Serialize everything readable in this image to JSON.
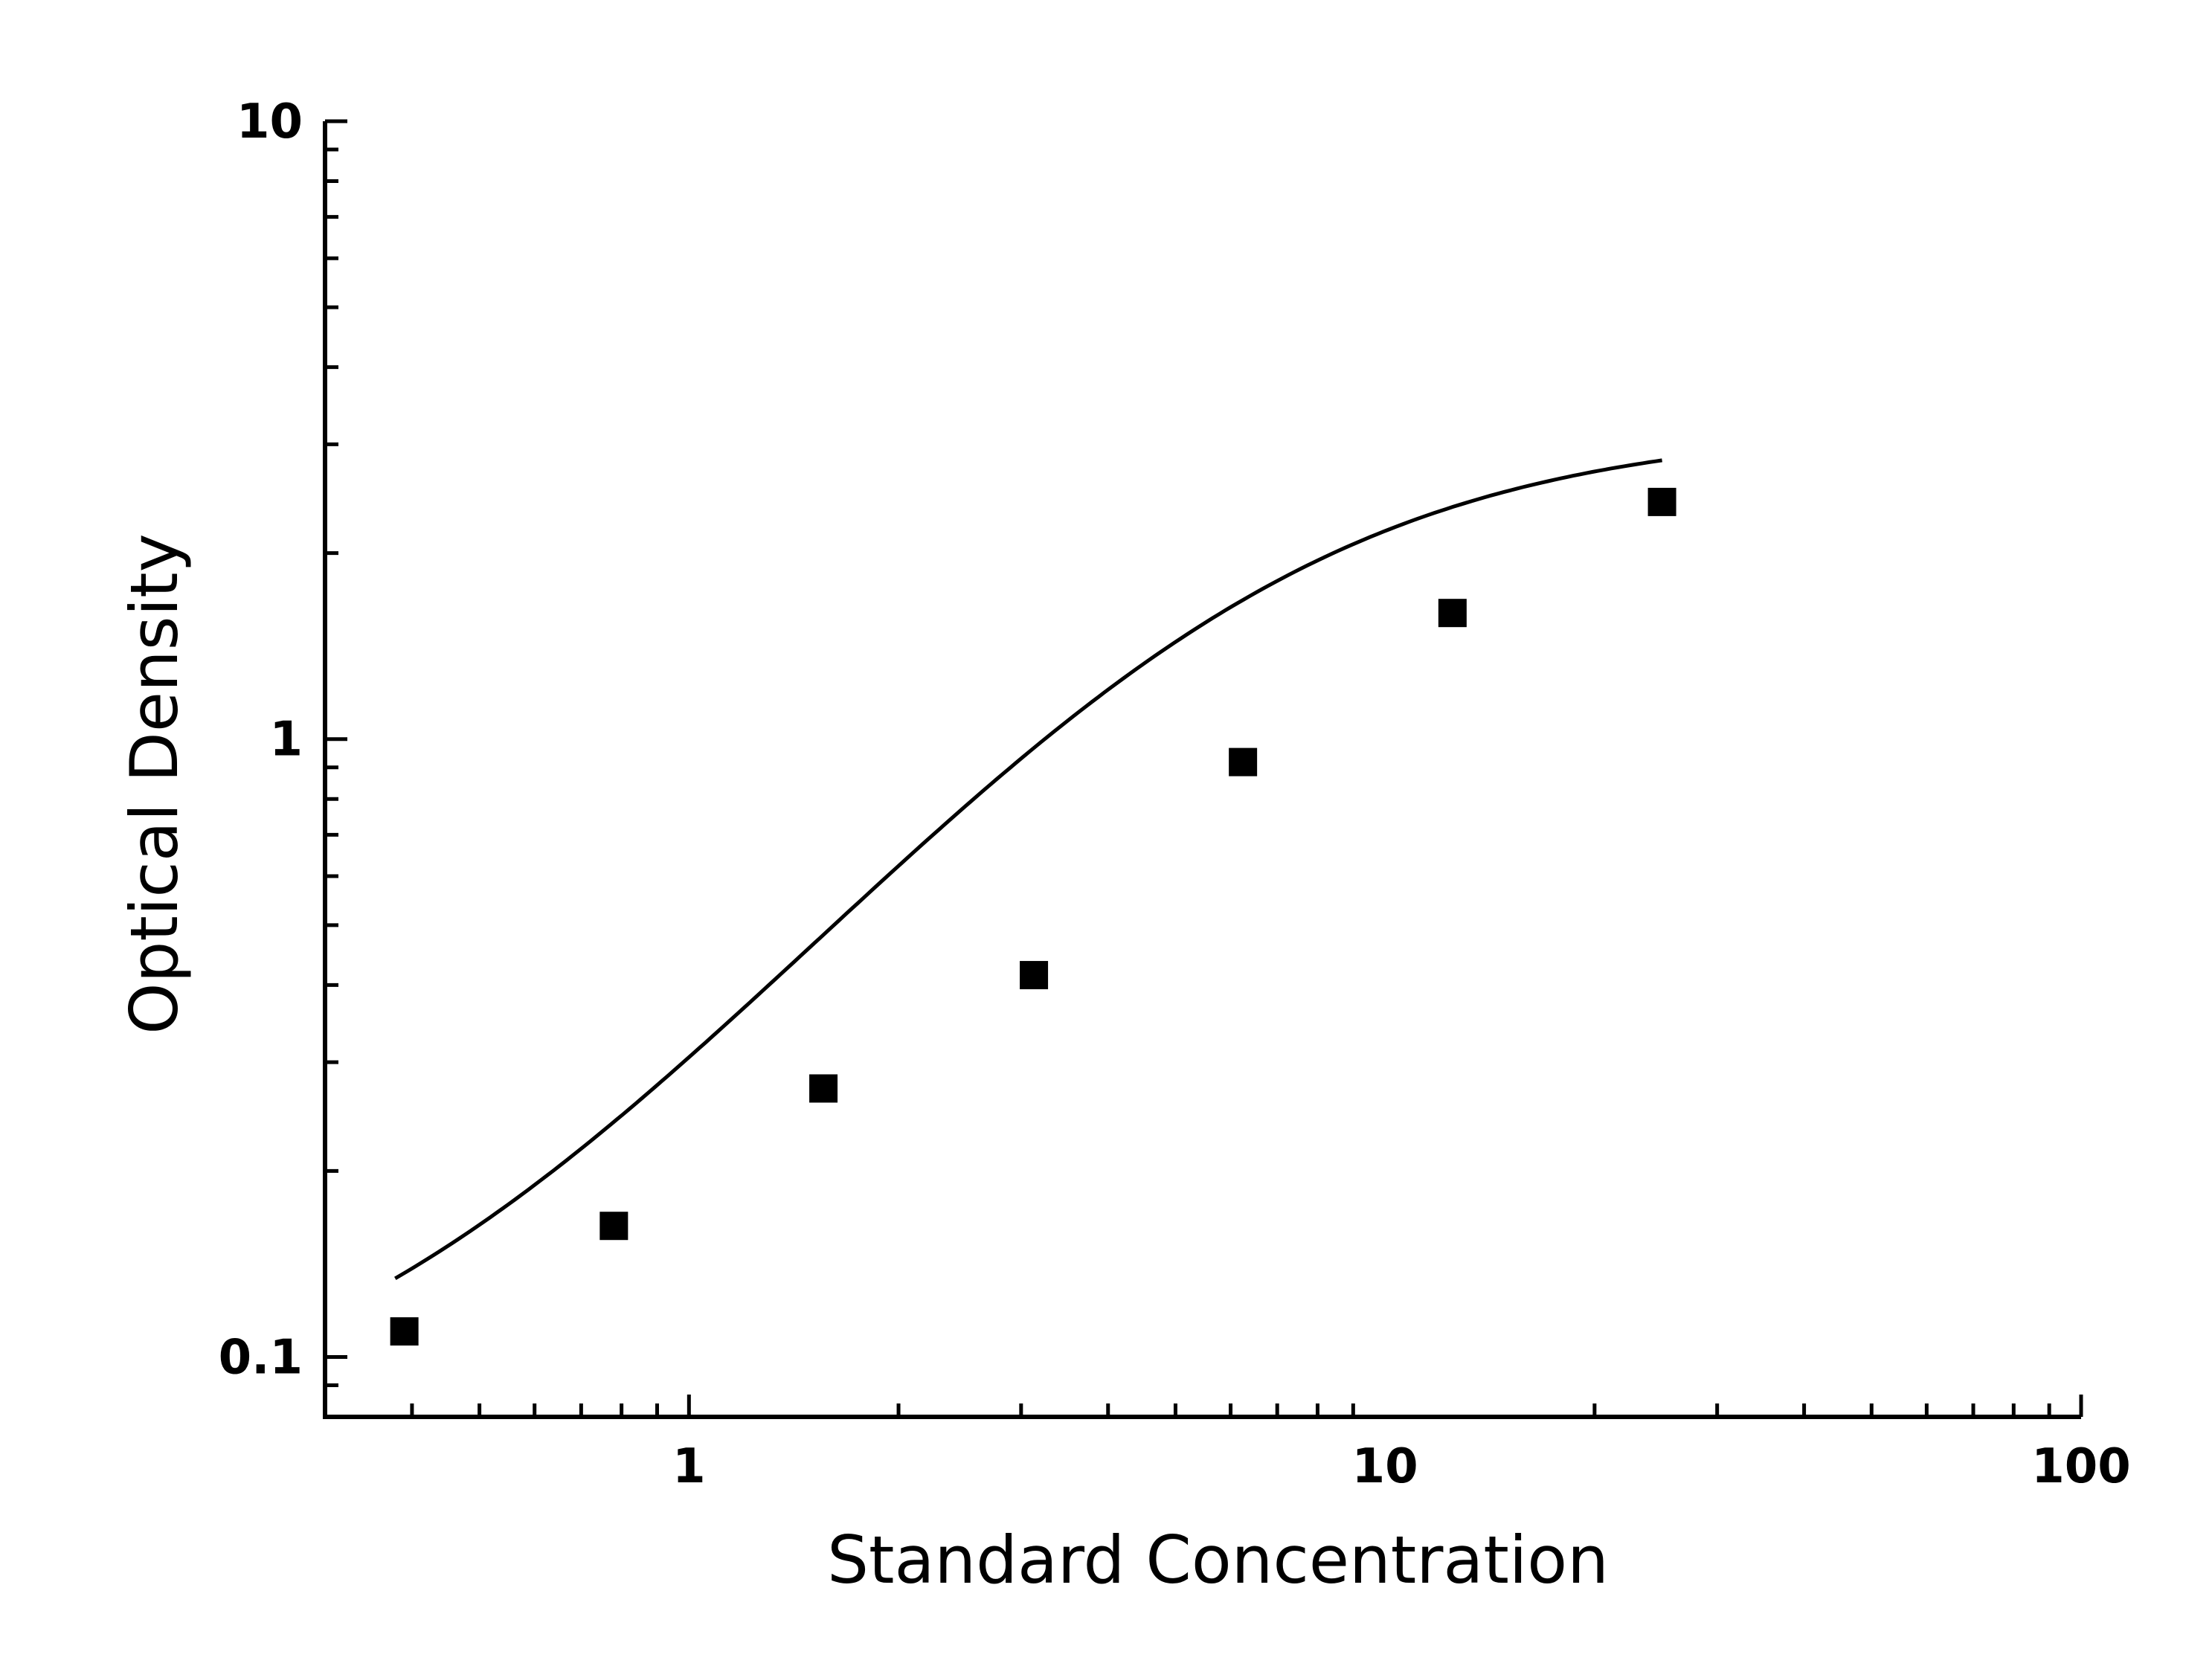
{
  "chart_data": {
    "type": "scatter",
    "title": "",
    "xlabel": "Standard Concentration",
    "ylabel": "Optical Density",
    "x_scale": "log",
    "y_scale": "log",
    "xlim": [
      0.3,
      100
    ],
    "ylim": [
      0.08,
      10
    ],
    "x_ticks": [
      {
        "value": 1,
        "label": "1"
      },
      {
        "value": 10,
        "label": "10"
      },
      {
        "value": 100,
        "label": "100"
      }
    ],
    "y_ticks": [
      {
        "value": 0.1,
        "label": "0.1"
      },
      {
        "value": 1,
        "label": "1"
      },
      {
        "value": 10,
        "label": "10"
      }
    ],
    "grid": false,
    "legend": "none",
    "series": [
      {
        "marker": "square",
        "color": "#000000",
        "x": [
          0.39,
          0.78,
          1.56,
          3.13,
          6.25,
          12.5,
          25
        ],
        "y": [
          0.11,
          0.163,
          0.272,
          0.415,
          0.918,
          1.6,
          2.42
        ]
      }
    ],
    "fit_curve": {
      "color": "#000000",
      "model": "four-parameter logistic",
      "params": {
        "A": 0.07,
        "B": 1.4,
        "C": 6.0,
        "D": 3.2
      }
    }
  }
}
